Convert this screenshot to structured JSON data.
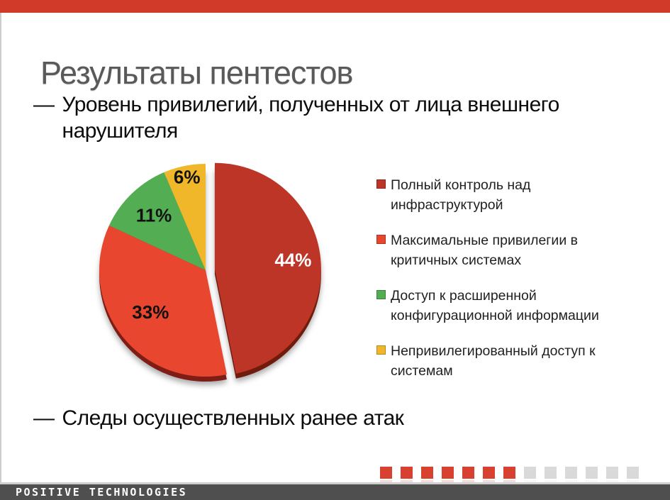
{
  "slide": {
    "title": "Результаты пентестов"
  },
  "bullets": {
    "first": {
      "dash": "—",
      "text": "Уровень привилегий, полученных от лица внешнего нарушителя"
    },
    "second": {
      "dash": "—",
      "text": "Следы осуществленных ранее атак"
    }
  },
  "chart_data": {
    "type": "pie",
    "title": "",
    "start_angle_deg": 0,
    "clockwise": true,
    "legend_position": "right",
    "slices": [
      {
        "label": "Полный контроль над инфраструктурой",
        "value": 44,
        "pct_label": "44%",
        "color": "#bd3526",
        "depth_color": "#701a10",
        "label_color": "#ffffff",
        "exploded": true,
        "label_r": 0.74
      },
      {
        "label": "Максимальные привилегии в критичных системах",
        "value": 33,
        "pct_label": "33%",
        "color": "#e8462e",
        "depth_color": "#7e1d12",
        "label_color": "#111111",
        "exploded": false,
        "label_r": 0.66
      },
      {
        "label": "Доступ к расширенной конфигурационной информации",
        "value": 11,
        "pct_label": "11%",
        "color": "#53ad53",
        "depth_color": "#2d7a2f",
        "label_color": "#111111",
        "exploded": false,
        "label_r": 0.7
      },
      {
        "label": "Непривилегированный доступ к системам",
        "value": 6,
        "pct_label": "6%",
        "color": "#f0b72b",
        "depth_color": "#a97b0f",
        "label_color": "#111111",
        "exploded": false,
        "label_r": 0.88
      }
    ]
  },
  "legend": {
    "items": [
      {
        "color": "#bd3526",
        "lines": [
          "Полный контроль над",
          "инфраструктурой"
        ]
      },
      {
        "color": "#e8462e",
        "lines": [
          "Максимальные  привилегии в",
          "критичных системах"
        ]
      },
      {
        "color": "#53ad53",
        "lines": [
          "Доступ к расширенной",
          "конфигурационной информации"
        ]
      },
      {
        "color": "#f0b72b",
        "lines": [
          "Непривилегированный доступ к",
          "системам"
        ]
      }
    ]
  },
  "footer": {
    "logo_text": "POSITIVE TECHNOLOGIES",
    "squares": {
      "red_count": 7,
      "gray_count": 6,
      "red_color": "#d8402f",
      "gray_color": "#d9d9d9"
    }
  },
  "colors": {
    "top_bar": "#d13a29",
    "title_text": "#595959",
    "footer_bar": "#4f4f4f",
    "body_text": "#0c0c0c"
  }
}
